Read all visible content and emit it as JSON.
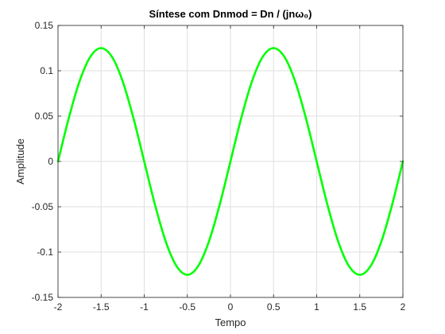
{
  "chart_data": {
    "type": "line",
    "title": "Síntese com Dnmod = Dn / (jnω₀)",
    "xlabel": "Tempo",
    "ylabel": "Amplitude",
    "xlim": [
      -2,
      2
    ],
    "ylim": [
      -0.15,
      0.15
    ],
    "grid": true,
    "xticks": [
      -2,
      -1.5,
      -1,
      -0.5,
      0,
      0.5,
      1,
      1.5,
      2
    ],
    "xtick_labels": [
      "-2",
      "-1.5",
      "-1",
      "-0.5",
      "0",
      "0.5",
      "1",
      "1.5",
      "2"
    ],
    "yticks": [
      -0.15,
      -0.1,
      -0.05,
      0,
      0.05,
      0.1,
      0.15
    ],
    "ytick_labels": [
      "-0.15",
      "-0.1",
      "-0.05",
      "0",
      "0.05",
      "0.1",
      "0.15"
    ],
    "series": [
      {
        "color": "#00ff00",
        "x": [
          -2,
          -1.875,
          -1.75,
          -1.625,
          -1.5,
          -1.375,
          -1.25,
          -1.125,
          -1,
          -0.875,
          -0.75,
          -0.625,
          -0.5,
          -0.375,
          -0.25,
          -0.125,
          0,
          0.125,
          0.25,
          0.375,
          0.5,
          0.625,
          0.75,
          0.875,
          1,
          1.125,
          1.25,
          1.375,
          1.5,
          1.625,
          1.75,
          1.875,
          2
        ],
        "y": [
          0,
          0.0478,
          0.0884,
          0.1155,
          0.125,
          0.1155,
          0.0884,
          0.0478,
          0,
          -0.0478,
          -0.0884,
          -0.1155,
          -0.125,
          -0.1155,
          -0.0884,
          -0.0478,
          0,
          0.0478,
          0.0884,
          0.1155,
          0.125,
          0.1155,
          0.0884,
          0.0478,
          0,
          -0.0478,
          -0.0884,
          -0.1155,
          -0.125,
          -0.1155,
          -0.0884,
          -0.0478,
          0
        ]
      }
    ]
  }
}
